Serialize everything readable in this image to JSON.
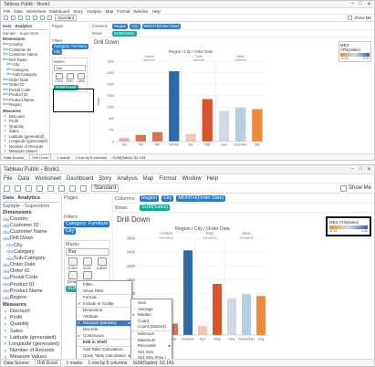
{
  "app": {
    "title": "Tableau Public - Book1",
    "menu": [
      "File",
      "Data",
      "Worksheet",
      "Dashboard",
      "Story",
      "Analysis",
      "Map",
      "Format",
      "Window",
      "Help"
    ],
    "fit": "Standard",
    "show_me": "Show Me"
  },
  "data_pane": {
    "tabs": [
      "Data",
      "Analytics"
    ],
    "source": "Sample - Superstore",
    "dimensions_head": "Dimensions",
    "dimensions": [
      {
        "label": "Country",
        "indent": false
      },
      {
        "label": "Customer ID",
        "indent": false
      },
      {
        "label": "Customer Name",
        "indent": false
      },
      {
        "label": "Drill Down",
        "indent": false
      },
      {
        "label": "City",
        "indent": true
      },
      {
        "label": "Category",
        "indent": true
      },
      {
        "label": "Sub-Category",
        "indent": true
      },
      {
        "label": "Order Date",
        "indent": false
      },
      {
        "label": "Order ID",
        "indent": false
      },
      {
        "label": "Postal Code",
        "indent": false
      },
      {
        "label": "Product ID",
        "indent": false
      },
      {
        "label": "Product Name",
        "indent": false
      },
      {
        "label": "Region",
        "indent": false
      }
    ],
    "measures_head": "Measures",
    "measures": [
      "Discount",
      "Profit",
      "Quantity",
      "Sales",
      "Latitude (generated)",
      "Longitude (generated)",
      "Number of Records",
      "Measure Values"
    ]
  },
  "cards": {
    "pages": "Pages",
    "filters": "Filters",
    "filter_pill": "Category: Furniture",
    "filter_pill2": "City",
    "marks": "Marks",
    "mark_type": "Bar",
    "mark_buttons": [
      "Color",
      "Size",
      "Label",
      "Detail",
      "Tooltip"
    ],
    "measure_pill": "SUM(Sales)"
  },
  "shelves": {
    "columns_label": "Columns",
    "rows_label": "Rows",
    "col_pills": [
      "Region",
      "City",
      "MONTH(Order Date)"
    ],
    "row_pill": "SUM(Sales)"
  },
  "view": {
    "sheet_title": "Drill Down",
    "chart_header": "Region / City / Order Date"
  },
  "legend": {
    "title": "MED ATN(Sales)",
    "min": "-8.14",
    "max": "2.41"
  },
  "context_menu": {
    "items": [
      {
        "label": "Filter...",
        "style": ""
      },
      {
        "label": "Show Filter",
        "style": ""
      },
      {
        "label": "Format...",
        "style": "sep"
      },
      {
        "label": "Include in Tooltip",
        "style": "chk"
      },
      {
        "label": "Dimension",
        "style": "sep"
      },
      {
        "label": "Attribute",
        "style": ""
      },
      {
        "label": "Measure (Median)",
        "style": "chk hi arrow"
      },
      {
        "label": "Discrete",
        "style": "sep"
      },
      {
        "label": "Continuous",
        "style": "dot"
      },
      {
        "label": "Edit in Shelf",
        "style": "sep bold"
      },
      {
        "label": "Add Table Calculation...",
        "style": "sep"
      },
      {
        "label": "Quick Table Calculation",
        "style": "arrow"
      }
    ],
    "submenu": [
      {
        "label": "Sum",
        "style": ""
      },
      {
        "label": "Average",
        "style": ""
      },
      {
        "label": "Median",
        "style": "dot"
      },
      {
        "label": "Count",
        "style": ""
      },
      {
        "label": "Count (Distinct)",
        "style": ""
      },
      {
        "label": "Minimum",
        "style": "sep"
      },
      {
        "label": "Maximum",
        "style": ""
      },
      {
        "label": "Percentile",
        "style": "arrow"
      },
      {
        "label": "Std. Dev",
        "style": ""
      },
      {
        "label": "Std. Dev (Pop.)",
        "style": ""
      }
    ]
  },
  "status": {
    "tabs": [
      "Data Source",
      "Drill Down"
    ],
    "info": [
      "1 marks",
      "1 row by 5 columns",
      "SUM(Sales): 52,143"
    ]
  },
  "chart_data": {
    "type": "bar",
    "groups": [
      "Central America",
      "East America",
      "West America"
    ],
    "categories": [
      "Jan",
      "Feb",
      "Mar",
      "October",
      "Apr",
      "May",
      "June",
      "December",
      "July"
    ],
    "values": [
      120,
      230,
      330,
      2450,
      260,
      1480,
      1060,
      1180,
      1130
    ],
    "colors": [
      "#e8a8a0",
      "#d9704f",
      "#d9704f",
      "#2f6aa8",
      "#f6c8a8",
      "#d9532b",
      "#cfd8e3",
      "#b7cde0",
      "#ef8a3c"
    ],
    "ylabel": "Sales",
    "ylim": [
      0,
      2800
    ],
    "yticks": [
      0,
      400,
      800,
      1200,
      1600,
      2000,
      2400,
      2800
    ]
  }
}
